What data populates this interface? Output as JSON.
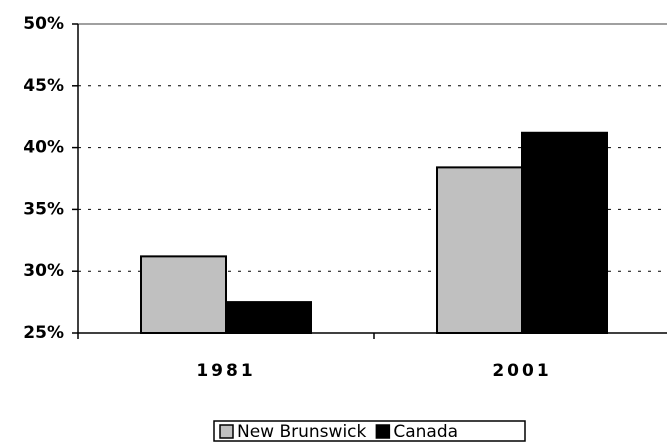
{
  "chart_data": {
    "type": "bar",
    "categories": [
      "1981",
      "2001"
    ],
    "series": [
      {
        "name": "New Brunswick",
        "color": "#c0c0c0",
        "values": [
          31.2,
          38.4
        ]
      },
      {
        "name": "Canada",
        "color": "#000000",
        "values": [
          27.5,
          41.2
        ]
      }
    ],
    "ylim": [
      25,
      50
    ],
    "yticks": [
      {
        "value": 25,
        "label": "25%"
      },
      {
        "value": 30,
        "label": "30%"
      },
      {
        "value": 35,
        "label": "35%"
      },
      {
        "value": 40,
        "label": "40%"
      },
      {
        "value": 45,
        "label": "45%"
      },
      {
        "value": 50,
        "label": "50%"
      }
    ],
    "grid": true,
    "legend": "bottom"
  }
}
